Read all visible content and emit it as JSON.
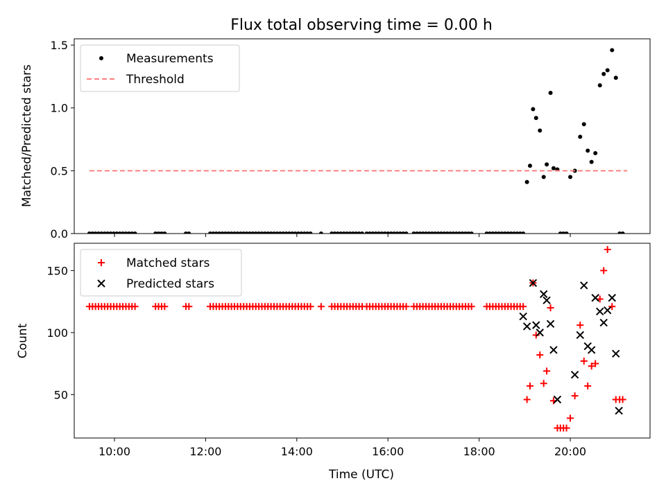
{
  "title": "Flux total observing time = 0.00 h",
  "colors": {
    "measurement": "#000000",
    "threshold": "#ff7f7f",
    "matched": "#ff0000",
    "predicted": "#000000"
  },
  "chart_data": [
    {
      "type": "scatter",
      "ylabel": "Matched/Predicted stars",
      "xlabel": "",
      "xlim": [
        "09:07",
        "21:45"
      ],
      "ylim": [
        0,
        1.55
      ],
      "yticks": [
        0.0,
        0.5,
        1.0,
        1.5
      ],
      "ytick_labels": [
        "0.0",
        "0.5",
        "1.0",
        "1.5"
      ],
      "legend": {
        "position": "upper-left",
        "entries": [
          "Measurements",
          "Threshold"
        ]
      },
      "series": [
        {
          "name": "Measurements",
          "marker": "dot",
          "points": [
            [
              "09:27",
              0
            ],
            [
              "09:31",
              0
            ],
            [
              "09:35",
              0
            ],
            [
              "09:39",
              0
            ],
            [
              "09:43",
              0
            ],
            [
              "09:47",
              0
            ],
            [
              "09:51",
              0
            ],
            [
              "09:55",
              0
            ],
            [
              "09:59",
              0
            ],
            [
              "10:03",
              0
            ],
            [
              "10:07",
              0
            ],
            [
              "10:11",
              0
            ],
            [
              "10:15",
              0
            ],
            [
              "10:19",
              0
            ],
            [
              "10:23",
              0
            ],
            [
              "10:27",
              0
            ],
            [
              "10:54",
              0
            ],
            [
              "10:58",
              0
            ],
            [
              "11:02",
              0
            ],
            [
              "11:06",
              0
            ],
            [
              "11:34",
              0
            ],
            [
              "11:38",
              0
            ],
            [
              "12:06",
              0
            ],
            [
              "12:10",
              0
            ],
            [
              "12:14",
              0
            ],
            [
              "12:18",
              0
            ],
            [
              "12:22",
              0
            ],
            [
              "12:26",
              0
            ],
            [
              "12:30",
              0
            ],
            [
              "12:34",
              0
            ],
            [
              "12:38",
              0
            ],
            [
              "12:42",
              0
            ],
            [
              "12:46",
              0
            ],
            [
              "12:50",
              0
            ],
            [
              "12:54",
              0
            ],
            [
              "12:58",
              0
            ],
            [
              "13:02",
              0
            ],
            [
              "13:06",
              0
            ],
            [
              "13:10",
              0
            ],
            [
              "13:14",
              0
            ],
            [
              "13:18",
              0
            ],
            [
              "13:22",
              0
            ],
            [
              "13:26",
              0
            ],
            [
              "13:30",
              0
            ],
            [
              "13:34",
              0
            ],
            [
              "13:38",
              0
            ],
            [
              "13:42",
              0
            ],
            [
              "13:46",
              0
            ],
            [
              "13:50",
              0
            ],
            [
              "13:54",
              0
            ],
            [
              "13:58",
              0
            ],
            [
              "14:02",
              0
            ],
            [
              "14:06",
              0
            ],
            [
              "14:10",
              0
            ],
            [
              "14:14",
              0
            ],
            [
              "14:18",
              0
            ],
            [
              "14:32",
              0
            ],
            [
              "14:46",
              0
            ],
            [
              "14:50",
              0
            ],
            [
              "14:54",
              0
            ],
            [
              "14:58",
              0
            ],
            [
              "15:02",
              0
            ],
            [
              "15:06",
              0
            ],
            [
              "15:10",
              0
            ],
            [
              "15:14",
              0
            ],
            [
              "15:18",
              0
            ],
            [
              "15:22",
              0
            ],
            [
              "15:26",
              0
            ],
            [
              "15:32",
              0
            ],
            [
              "15:36",
              0
            ],
            [
              "15:40",
              0
            ],
            [
              "15:44",
              0
            ],
            [
              "15:48",
              0
            ],
            [
              "15:52",
              0
            ],
            [
              "15:56",
              0
            ],
            [
              "16:00",
              0
            ],
            [
              "16:04",
              0
            ],
            [
              "16:08",
              0
            ],
            [
              "16:12",
              0
            ],
            [
              "16:16",
              0
            ],
            [
              "16:20",
              0
            ],
            [
              "16:24",
              0
            ],
            [
              "16:34",
              0
            ],
            [
              "16:38",
              0
            ],
            [
              "16:42",
              0
            ],
            [
              "16:46",
              0
            ],
            [
              "16:50",
              0
            ],
            [
              "16:54",
              0
            ],
            [
              "16:58",
              0
            ],
            [
              "17:02",
              0
            ],
            [
              "17:06",
              0
            ],
            [
              "17:10",
              0
            ],
            [
              "17:14",
              0
            ],
            [
              "17:18",
              0
            ],
            [
              "17:22",
              0
            ],
            [
              "17:26",
              0
            ],
            [
              "17:30",
              0
            ],
            [
              "17:34",
              0
            ],
            [
              "17:38",
              0
            ],
            [
              "17:42",
              0
            ],
            [
              "17:46",
              0
            ],
            [
              "17:50",
              0
            ],
            [
              "18:10",
              0
            ],
            [
              "18:14",
              0
            ],
            [
              "18:18",
              0
            ],
            [
              "18:22",
              0
            ],
            [
              "18:26",
              0
            ],
            [
              "18:30",
              0
            ],
            [
              "18:34",
              0
            ],
            [
              "18:38",
              0
            ],
            [
              "18:42",
              0
            ],
            [
              "18:46",
              0
            ],
            [
              "18:50",
              0
            ],
            [
              "18:54",
              0
            ],
            [
              "18:58",
              0
            ],
            [
              "19:03",
              0.41
            ],
            [
              "19:07",
              0.54
            ],
            [
              "19:11",
              0.99
            ],
            [
              "19:15",
              0.92
            ],
            [
              "19:20",
              0.82
            ],
            [
              "19:25",
              0.45
            ],
            [
              "19:29",
              0.55
            ],
            [
              "19:34",
              1.12
            ],
            [
              "19:38",
              0.52
            ],
            [
              "19:43",
              0.51
            ],
            [
              "19:47",
              0
            ],
            [
              "19:51",
              0
            ],
            [
              "19:55",
              0
            ],
            [
              "20:00",
              0.45
            ],
            [
              "20:06",
              0.5
            ],
            [
              "20:13",
              0.77
            ],
            [
              "20:18",
              0.87
            ],
            [
              "20:23",
              0.66
            ],
            [
              "20:28",
              0.57
            ],
            [
              "20:33",
              0.64
            ],
            [
              "20:39",
              1.18
            ],
            [
              "20:44",
              1.27
            ],
            [
              "20:49",
              1.3
            ],
            [
              "20:55",
              1.46
            ],
            [
              "21:00",
              1.24
            ],
            [
              "21:05",
              0
            ],
            [
              "21:09",
              0
            ]
          ]
        },
        {
          "name": "Threshold",
          "style": "dashed",
          "points": [
            [
              "09:27",
              0.5
            ],
            [
              "21:15",
              0.5
            ]
          ]
        }
      ]
    },
    {
      "type": "scatter",
      "ylabel": "Count",
      "xlabel": "Time (UTC)",
      "xlim": [
        "09:07",
        "21:45"
      ],
      "ylim": [
        15,
        172
      ],
      "yticks": [
        50,
        100,
        150
      ],
      "ytick_labels": [
        "50",
        "100",
        "150"
      ],
      "xticks": [
        "10:00",
        "12:00",
        "14:00",
        "16:00",
        "18:00",
        "20:00"
      ],
      "legend": {
        "position": "upper-left",
        "entries": [
          "Matched stars",
          "Predicted stars"
        ]
      },
      "baseline_count": 121,
      "series": [
        {
          "name": "Matched stars",
          "marker": "plus",
          "points": [
            [
              "19:03",
              46
            ],
            [
              "19:07",
              57
            ],
            [
              "19:11",
              140
            ],
            [
              "19:15",
              98
            ],
            [
              "19:20",
              82
            ],
            [
              "19:25",
              59
            ],
            [
              "19:29",
              69
            ],
            [
              "19:34",
              120
            ],
            [
              "19:38",
              45
            ],
            [
              "19:43",
              23
            ],
            [
              "19:47",
              23
            ],
            [
              "19:51",
              23
            ],
            [
              "19:55",
              23
            ],
            [
              "20:00",
              31
            ],
            [
              "20:06",
              49
            ],
            [
              "20:13",
              106
            ],
            [
              "20:18",
              77
            ],
            [
              "20:23",
              57
            ],
            [
              "20:28",
              73
            ],
            [
              "20:33",
              75
            ],
            [
              "20:39",
              127
            ],
            [
              "20:44",
              150
            ],
            [
              "20:49",
              167
            ],
            [
              "20:55",
              121
            ],
            [
              "21:00",
              46
            ],
            [
              "21:05",
              46
            ],
            [
              "21:09",
              46
            ]
          ]
        },
        {
          "name": "Predicted stars",
          "marker": "x",
          "points": [
            [
              "18:58",
              113
            ],
            [
              "19:03",
              105
            ],
            [
              "19:11",
              140
            ],
            [
              "19:15",
              106
            ],
            [
              "19:20",
              100
            ],
            [
              "19:25",
              131
            ],
            [
              "19:29",
              126
            ],
            [
              "19:34",
              107
            ],
            [
              "19:38",
              86
            ],
            [
              "19:43",
              46
            ],
            [
              "20:06",
              66
            ],
            [
              "20:13",
              98
            ],
            [
              "20:18",
              138
            ],
            [
              "20:23",
              89
            ],
            [
              "20:28",
              86
            ],
            [
              "20:33",
              128
            ],
            [
              "20:39",
              117
            ],
            [
              "20:44",
              108
            ],
            [
              "20:49",
              118
            ],
            [
              "20:55",
              128
            ],
            [
              "21:00",
              83
            ],
            [
              "21:04",
              37
            ]
          ]
        }
      ]
    }
  ]
}
